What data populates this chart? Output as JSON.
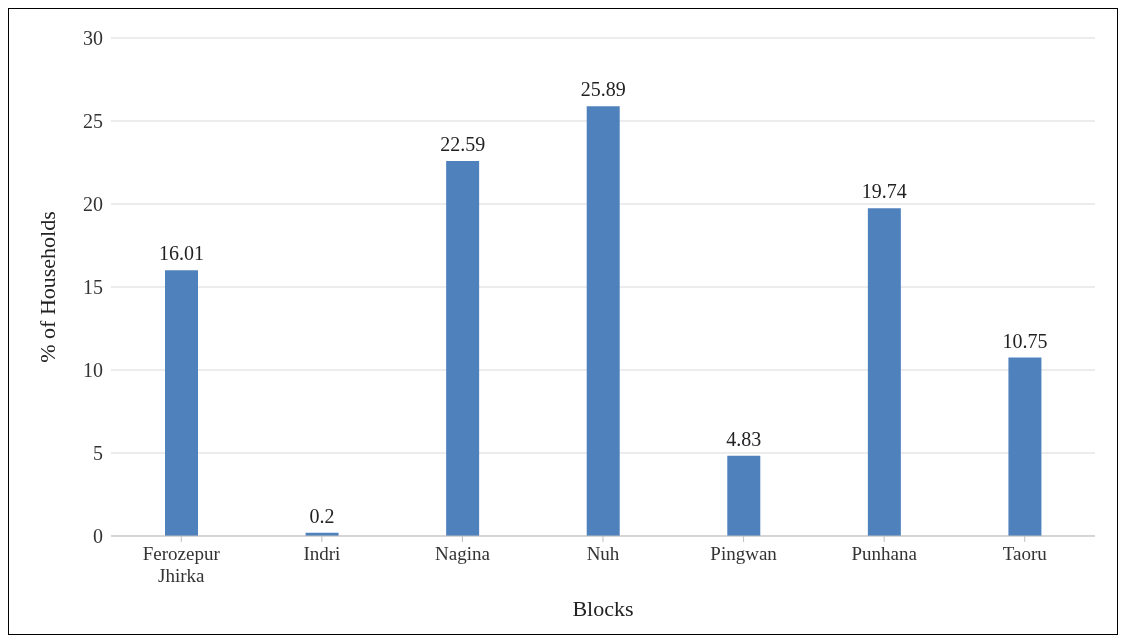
{
  "chart_data": {
    "type": "bar",
    "xlabel": "Blocks",
    "ylabel": "% of Households",
    "categories": [
      "Ferozepur Jhirka",
      "Indri",
      "Nagina",
      "Nuh",
      "Pingwan",
      "Punhana",
      "Taoru"
    ],
    "values": [
      16.01,
      0.2,
      22.59,
      25.89,
      4.83,
      19.74,
      10.75
    ],
    "color": "#4f81bd",
    "ylim": [
      0,
      30
    ],
    "yticks": [
      0,
      5,
      10,
      15,
      20,
      25,
      30
    ],
    "grid": "y",
    "data_labels": true
  }
}
